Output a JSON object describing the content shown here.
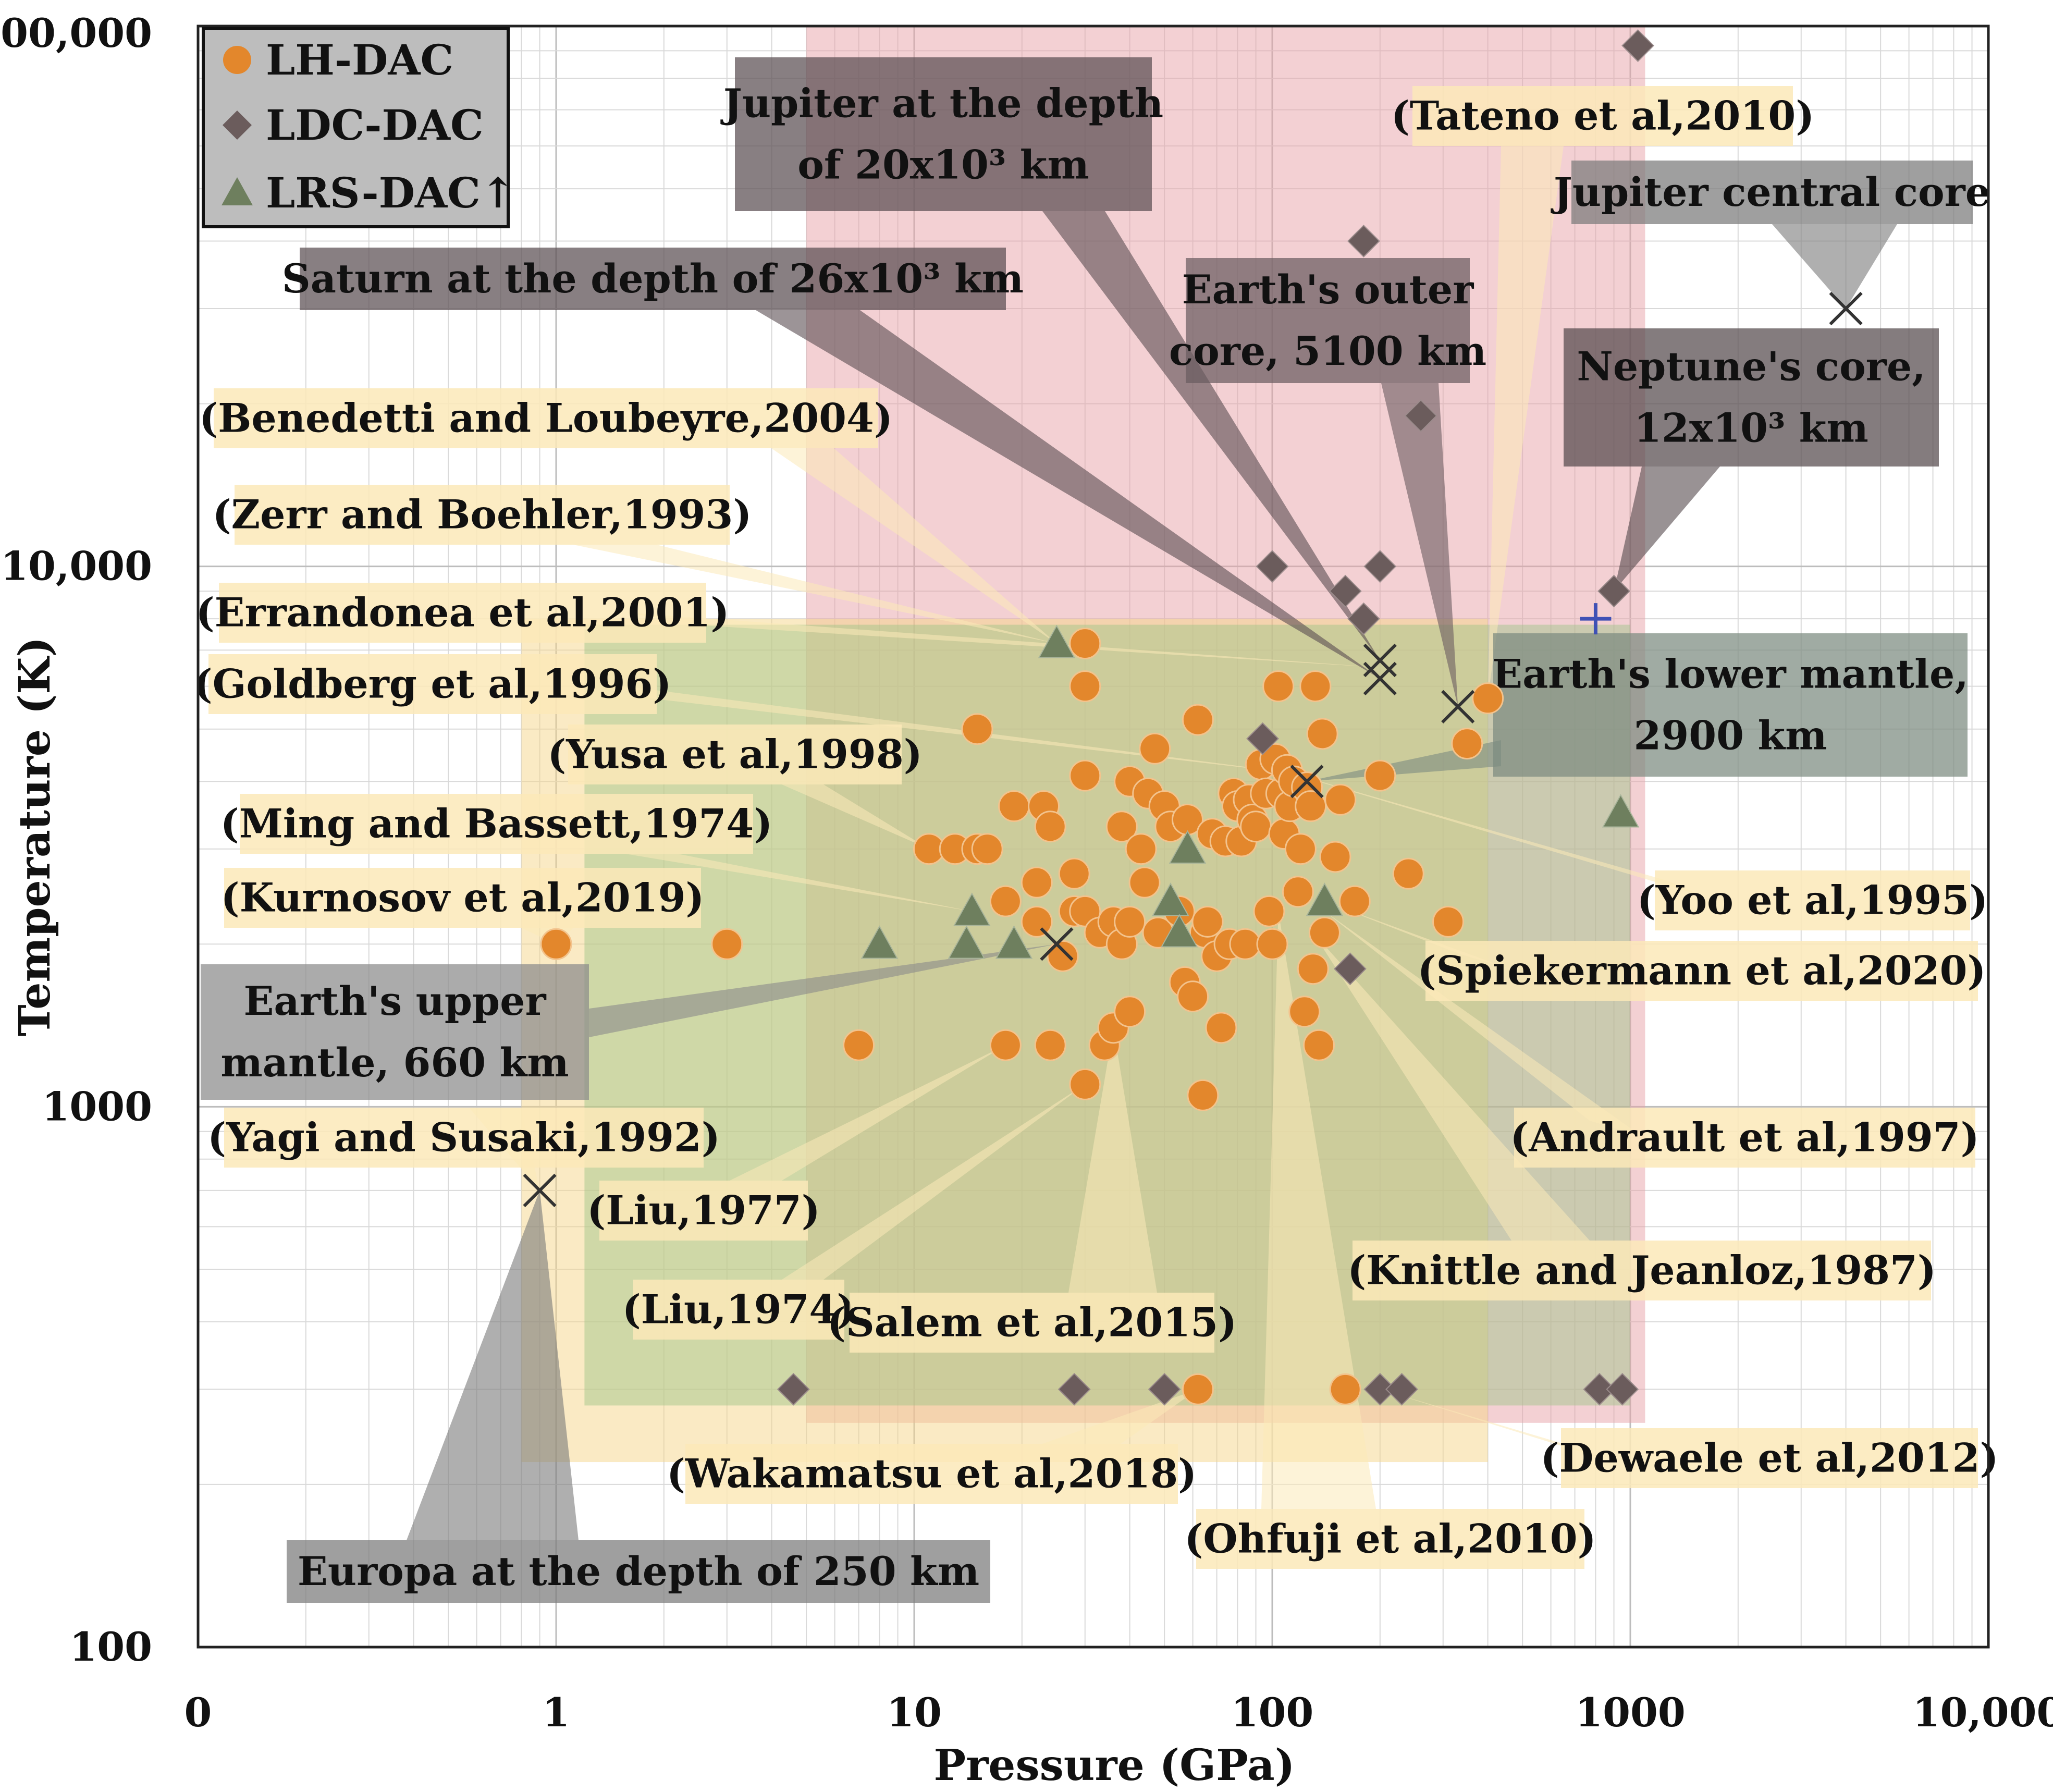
{
  "chart_data": {
    "type": "scatter",
    "title": "",
    "xlabel": "Pressure (GPa)",
    "ylabel": "Temperature (K)",
    "x_scale": "log",
    "y_scale": "log",
    "xlim": [
      0.1,
      10000
    ],
    "ylim": [
      100,
      100000
    ],
    "x_ticks": [
      {
        "value": 0.1,
        "label": "0"
      },
      {
        "value": 1,
        "label": "1"
      },
      {
        "value": 10,
        "label": "10"
      },
      {
        "value": 100,
        "label": "100"
      },
      {
        "value": 1000,
        "label": "1000"
      },
      {
        "value": 10000,
        "label": "10,000"
      }
    ],
    "y_ticks": [
      {
        "value": 100,
        "label": "100"
      },
      {
        "value": 1000,
        "label": "1000"
      },
      {
        "value": 10000,
        "label": "10,000"
      },
      {
        "value": 100000,
        "label": "100,000"
      }
    ],
    "grid": true,
    "legend": {
      "position": "top-left",
      "entries": [
        {
          "label": "LH-DAC",
          "marker": "circle",
          "color": "#E3872C"
        },
        {
          "label": "LDC-DAC",
          "marker": "diamond",
          "color": "#6B5C5C"
        },
        {
          "label": "LRS-DAC↑",
          "marker": "triangle",
          "color": "#6E7F5E"
        }
      ]
    },
    "regions": [
      {
        "name": "LDC-DAC range",
        "x": [
          5,
          1100
        ],
        "y": [
          260,
          100000
        ],
        "color": "#E8A1A8",
        "opacity": 0.5
      },
      {
        "name": "LH-DAC range",
        "x": [
          0.8,
          400
        ],
        "y": [
          220,
          8000
        ],
        "color": "#F5D58A",
        "opacity": 0.5
      },
      {
        "name": "LRS-DAC range",
        "x": [
          1.2,
          1000
        ],
        "y": [
          280,
          7800
        ],
        "color": "#9CC484",
        "opacity": 0.45
      }
    ],
    "series": [
      {
        "name": "LH-DAC",
        "marker": "circle",
        "color": "#E3872C",
        "points": [
          [
            1.0,
            2000
          ],
          [
            3.0,
            2000
          ],
          [
            7.0,
            1300
          ],
          [
            11,
            3000
          ],
          [
            13,
            3000
          ],
          [
            15,
            3000
          ],
          [
            16,
            3000
          ],
          [
            15,
            5000
          ],
          [
            18,
            2400
          ],
          [
            18,
            1300
          ],
          [
            19,
            3600
          ],
          [
            22,
            2200
          ],
          [
            22,
            2600
          ],
          [
            23,
            3600
          ],
          [
            24,
            3300
          ],
          [
            24,
            1300
          ],
          [
            26,
            1900
          ],
          [
            28,
            2300
          ],
          [
            28,
            2700
          ],
          [
            30,
            4100
          ],
          [
            30,
            2300
          ],
          [
            30,
            7200
          ],
          [
            30,
            6000
          ],
          [
            30,
            1100
          ],
          [
            33,
            2100
          ],
          [
            34,
            1300
          ],
          [
            36,
            1400
          ],
          [
            36,
            2200
          ],
          [
            38,
            2000
          ],
          [
            38,
            3300
          ],
          [
            40,
            1500
          ],
          [
            40,
            2200
          ],
          [
            40,
            4000
          ],
          [
            43,
            3000
          ],
          [
            44,
            2600
          ],
          [
            45,
            3800
          ],
          [
            47,
            4600
          ],
          [
            48,
            2100
          ],
          [
            50,
            3600
          ],
          [
            52,
            3300
          ],
          [
            55,
            2300
          ],
          [
            57,
            1700
          ],
          [
            58,
            3400
          ],
          [
            60,
            1600
          ],
          [
            62,
            5200
          ],
          [
            64,
            1050
          ],
          [
            65,
            2100
          ],
          [
            66,
            2200
          ],
          [
            68,
            3200
          ],
          [
            70,
            1900
          ],
          [
            72,
            1400
          ],
          [
            74,
            3100
          ],
          [
            76,
            2000
          ],
          [
            78,
            3800
          ],
          [
            80,
            3600
          ],
          [
            82,
            3100
          ],
          [
            84,
            2000
          ],
          [
            86,
            3700
          ],
          [
            88,
            3400
          ],
          [
            90,
            3300
          ],
          [
            93,
            4300
          ],
          [
            96,
            3800
          ],
          [
            98,
            2300
          ],
          [
            100,
            2000
          ],
          [
            102,
            4400
          ],
          [
            104,
            6000
          ],
          [
            106,
            3800
          ],
          [
            108,
            3200
          ],
          [
            110,
            4200
          ],
          [
            112,
            3600
          ],
          [
            115,
            4000
          ],
          [
            118,
            2500
          ],
          [
            120,
            3000
          ],
          [
            123,
            1500
          ],
          [
            125,
            3900
          ],
          [
            128,
            3600
          ],
          [
            130,
            1800
          ],
          [
            132,
            6000
          ],
          [
            135,
            1300
          ],
          [
            138,
            4900
          ],
          [
            140,
            2100
          ],
          [
            150,
            2900
          ],
          [
            155,
            3700
          ],
          [
            170,
            2400
          ],
          [
            200,
            4100
          ],
          [
            240,
            2700
          ],
          [
            310,
            2200
          ],
          [
            350,
            4700
          ],
          [
            400,
            5700
          ],
          [
            62,
            300
          ],
          [
            160,
            300
          ]
        ]
      },
      {
        "name": "LDC-DAC",
        "marker": "diamond",
        "color": "#6B5C5C",
        "points": [
          [
            4.6,
            300
          ],
          [
            28,
            300
          ],
          [
            50,
            300
          ],
          [
            200,
            300
          ],
          [
            230,
            300
          ],
          [
            820,
            300
          ],
          [
            950,
            300
          ],
          [
            94,
            4800
          ],
          [
            100,
            10000
          ],
          [
            160,
            9000
          ],
          [
            180,
            8000
          ],
          [
            200,
            10000
          ],
          [
            180,
            40000
          ],
          [
            260,
            19000
          ],
          [
            900,
            9000
          ],
          [
            1050,
            92000
          ],
          [
            165,
            1800
          ]
        ]
      },
      {
        "name": "LRS-DAC↑",
        "marker": "triangle",
        "color": "#6E7F5E",
        "points": [
          [
            8,
            2000
          ],
          [
            14,
            2000
          ],
          [
            14.5,
            2300
          ],
          [
            19,
            2000
          ],
          [
            25,
            7200
          ],
          [
            52,
            2400
          ],
          [
            55,
            2100
          ],
          [
            58,
            3000
          ],
          [
            140,
            2400
          ],
          [
            940,
            3500
          ]
        ]
      }
    ],
    "reference_markers": [
      {
        "name": "Europa at the depth of 250 km",
        "x": 0.9,
        "y": 700,
        "marker": "x"
      },
      {
        "name": "Earth's upper mantle, 660 km",
        "x": 25,
        "y": 2000,
        "marker": "x"
      },
      {
        "name": "Earth's lower mantle, 2900 km",
        "x": 125,
        "y": 4000,
        "marker": "x"
      },
      {
        "name": "Earth's outer core, 5100 km",
        "x": 330,
        "y": 5500,
        "marker": "x"
      },
      {
        "name": "Saturn at the depth of 26x10³ km",
        "x": 200,
        "y": 6200,
        "marker": "x"
      },
      {
        "name": "Jupiter at the depth of 20x10³ km",
        "x": 200,
        "y": 6700,
        "marker": "x"
      },
      {
        "name": "Jupiter central core",
        "x": 4000,
        "y": 30000,
        "marker": "x"
      },
      {
        "name": "Neptune's core, 12x10³ km",
        "x": 800,
        "y": 8000,
        "marker": "plus"
      }
    ],
    "annotations": [
      {
        "text": "(Benedetti and Loubeyre,2004)",
        "style": "ref"
      },
      {
        "text": "(Zerr and Boehler,1993)",
        "style": "ref"
      },
      {
        "text": "(Errandonea et al,2001)",
        "style": "ref"
      },
      {
        "text": "(Goldberg et al,1996)",
        "style": "ref"
      },
      {
        "text": "(Yusa et al,1998)",
        "style": "ref"
      },
      {
        "text": "(Ming and Bassett,1974)",
        "style": "ref"
      },
      {
        "text": "(Kurnosov et al,2019)",
        "style": "ref"
      },
      {
        "text": "(Yagi and Susaki,1992)",
        "style": "ref"
      },
      {
        "text": "(Liu,1977)",
        "style": "ref"
      },
      {
        "text": "(Liu,1974)",
        "style": "ref"
      },
      {
        "text": "(Salem et al,2015)",
        "style": "ref"
      },
      {
        "text": "(Wakamatsu et al,2018)",
        "style": "ref"
      },
      {
        "text": "(Ohfuji et al,2010)",
        "style": "ref"
      },
      {
        "text": "(Dewaele et al,2012)",
        "style": "ref"
      },
      {
        "text": "(Knittle and Jeanloz,1987)",
        "style": "ref"
      },
      {
        "text": "(Andrault et al,1997)",
        "style": "ref"
      },
      {
        "text": "(Spiekermann et al,2020)",
        "style": "ref"
      },
      {
        "text": "(Yoo et al,1995)",
        "style": "ref"
      },
      {
        "text": "(Tateno et al,2010)",
        "style": "ref"
      },
      {
        "text": "Jupiter at the depth of 20x10³ km",
        "style": "body"
      },
      {
        "text": "Saturn at the depth of 26x10³ km",
        "style": "body"
      },
      {
        "text": "Earth's outer core, 5100 km",
        "style": "body"
      },
      {
        "text": "Jupiter central core",
        "style": "body"
      },
      {
        "text": "Neptune's core, 12x10³ km",
        "style": "body"
      },
      {
        "text": "Earth's lower mantle, 2900 km",
        "style": "body"
      },
      {
        "text": "Earth's upper mantle, 660 km",
        "style": "body"
      },
      {
        "text": "Europa at the depth of 250 km",
        "style": "body"
      }
    ]
  }
}
